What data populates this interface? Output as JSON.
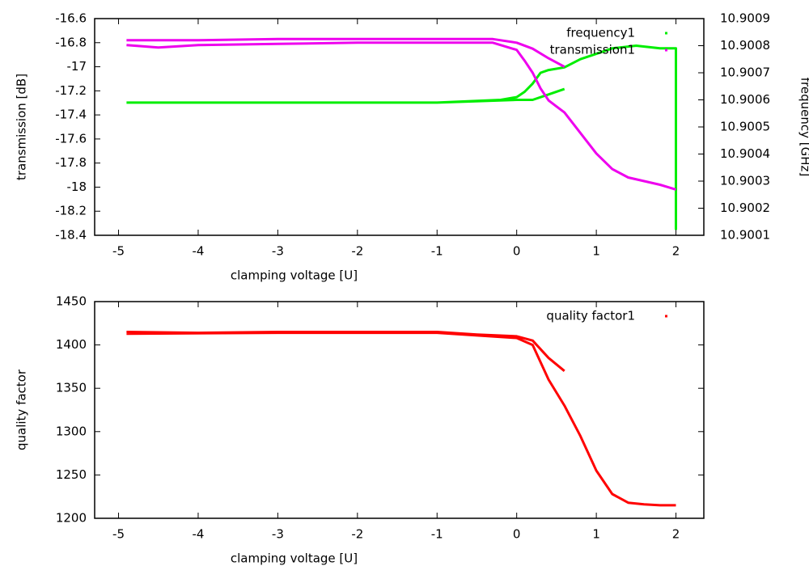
{
  "chart_data": [
    {
      "type": "line",
      "xlabel": "clamping voltage [U]",
      "ylabel": "transmission [dB]",
      "y2label": "frequency [GHz]",
      "xlim": [
        -5.3,
        2.35
      ],
      "xticks": [
        -5,
        -4,
        -3,
        -2,
        -1,
        0,
        1,
        2
      ],
      "ylim": [
        -18.4,
        -16.6
      ],
      "yticks": [
        -16.6,
        -16.8,
        -17,
        -17.2,
        -17.4,
        -17.6,
        -17.8,
        -18,
        -18.2,
        -18.4
      ],
      "y2lim": [
        10.9001,
        10.9009
      ],
      "y2ticks": [
        10.9009,
        10.9008,
        10.9007,
        10.9006,
        10.9005,
        10.9004,
        10.9003,
        10.9002,
        10.9001
      ],
      "legend": "top-right",
      "series": [
        {
          "name": "frequency1",
          "color": "#00ee00",
          "axis": "y2",
          "x": [
            -4.9,
            -3,
            -1,
            0,
            0.2,
            0.4,
            0.6,
            null,
            -4.9,
            -3,
            -1,
            -0.2,
            0,
            0.1,
            0.2,
            0.3,
            0.4,
            0.6,
            0.8,
            1.0,
            1.2,
            1.5,
            1.8,
            2.0,
            2.0
          ],
          "values": [
            10.90059,
            10.90059,
            10.90059,
            10.9006,
            10.9006,
            10.90062,
            10.90064,
            null,
            10.90059,
            10.90059,
            10.90059,
            10.9006,
            10.90061,
            10.90063,
            10.90066,
            10.9007,
            10.90071,
            10.90072,
            10.90075,
            10.90077,
            10.90079,
            10.9008,
            10.90079,
            10.90079,
            10.90012
          ]
        },
        {
          "name": "transmission1",
          "color": "#ee00ee",
          "x": [
            -4.9,
            -4,
            -3,
            -2,
            -1,
            -0.3,
            0,
            0.2,
            0.4,
            0.6,
            null,
            -4.9,
            -4.5,
            -4,
            -3,
            -2,
            -1,
            -0.3,
            0,
            0.1,
            0.2,
            0.3,
            0.4,
            0.5,
            0.6,
            0.8,
            1.0,
            1.2,
            1.4,
            1.6,
            1.8,
            1.9,
            2.0
          ],
          "values": [
            -16.78,
            -16.78,
            -16.77,
            -16.77,
            -16.77,
            -16.77,
            -16.8,
            -16.85,
            -16.93,
            -17.0,
            null,
            -16.82,
            -16.84,
            -16.82,
            -16.81,
            -16.8,
            -16.8,
            -16.8,
            -16.86,
            -16.95,
            -17.05,
            -17.18,
            -17.28,
            -17.33,
            -17.38,
            -17.55,
            -17.72,
            -17.85,
            -17.92,
            -17.95,
            -17.98,
            -18.0,
            -18.02
          ]
        }
      ]
    },
    {
      "type": "line",
      "xlabel": "clamping voltage [U]",
      "ylabel": "quality factor",
      "xlim": [
        -5.3,
        2.35
      ],
      "xticks": [
        -5,
        -4,
        -3,
        -2,
        -1,
        0,
        1,
        2
      ],
      "ylim": [
        1200,
        1450
      ],
      "yticks": [
        1450,
        1400,
        1350,
        1300,
        1250,
        1200
      ],
      "legend": "top-right",
      "series": [
        {
          "name": "quality factor1",
          "color": "#ff0000",
          "x": [
            -4.9,
            -4,
            -3,
            -2,
            -1,
            -0.5,
            0,
            0.2,
            0.4,
            0.6,
            null,
            -4.9,
            -3,
            -1,
            0,
            0.2,
            0.4,
            0.6,
            0.8,
            1.0,
            1.2,
            1.4,
            1.6,
            1.8,
            2.0
          ],
          "values": [
            1415,
            1414,
            1415,
            1415,
            1415,
            1412,
            1410,
            1405,
            1385,
            1370,
            null,
            1413,
            1414,
            1414,
            1408,
            1400,
            1360,
            1330,
            1295,
            1255,
            1228,
            1218,
            1216,
            1215,
            1215
          ]
        }
      ]
    }
  ]
}
